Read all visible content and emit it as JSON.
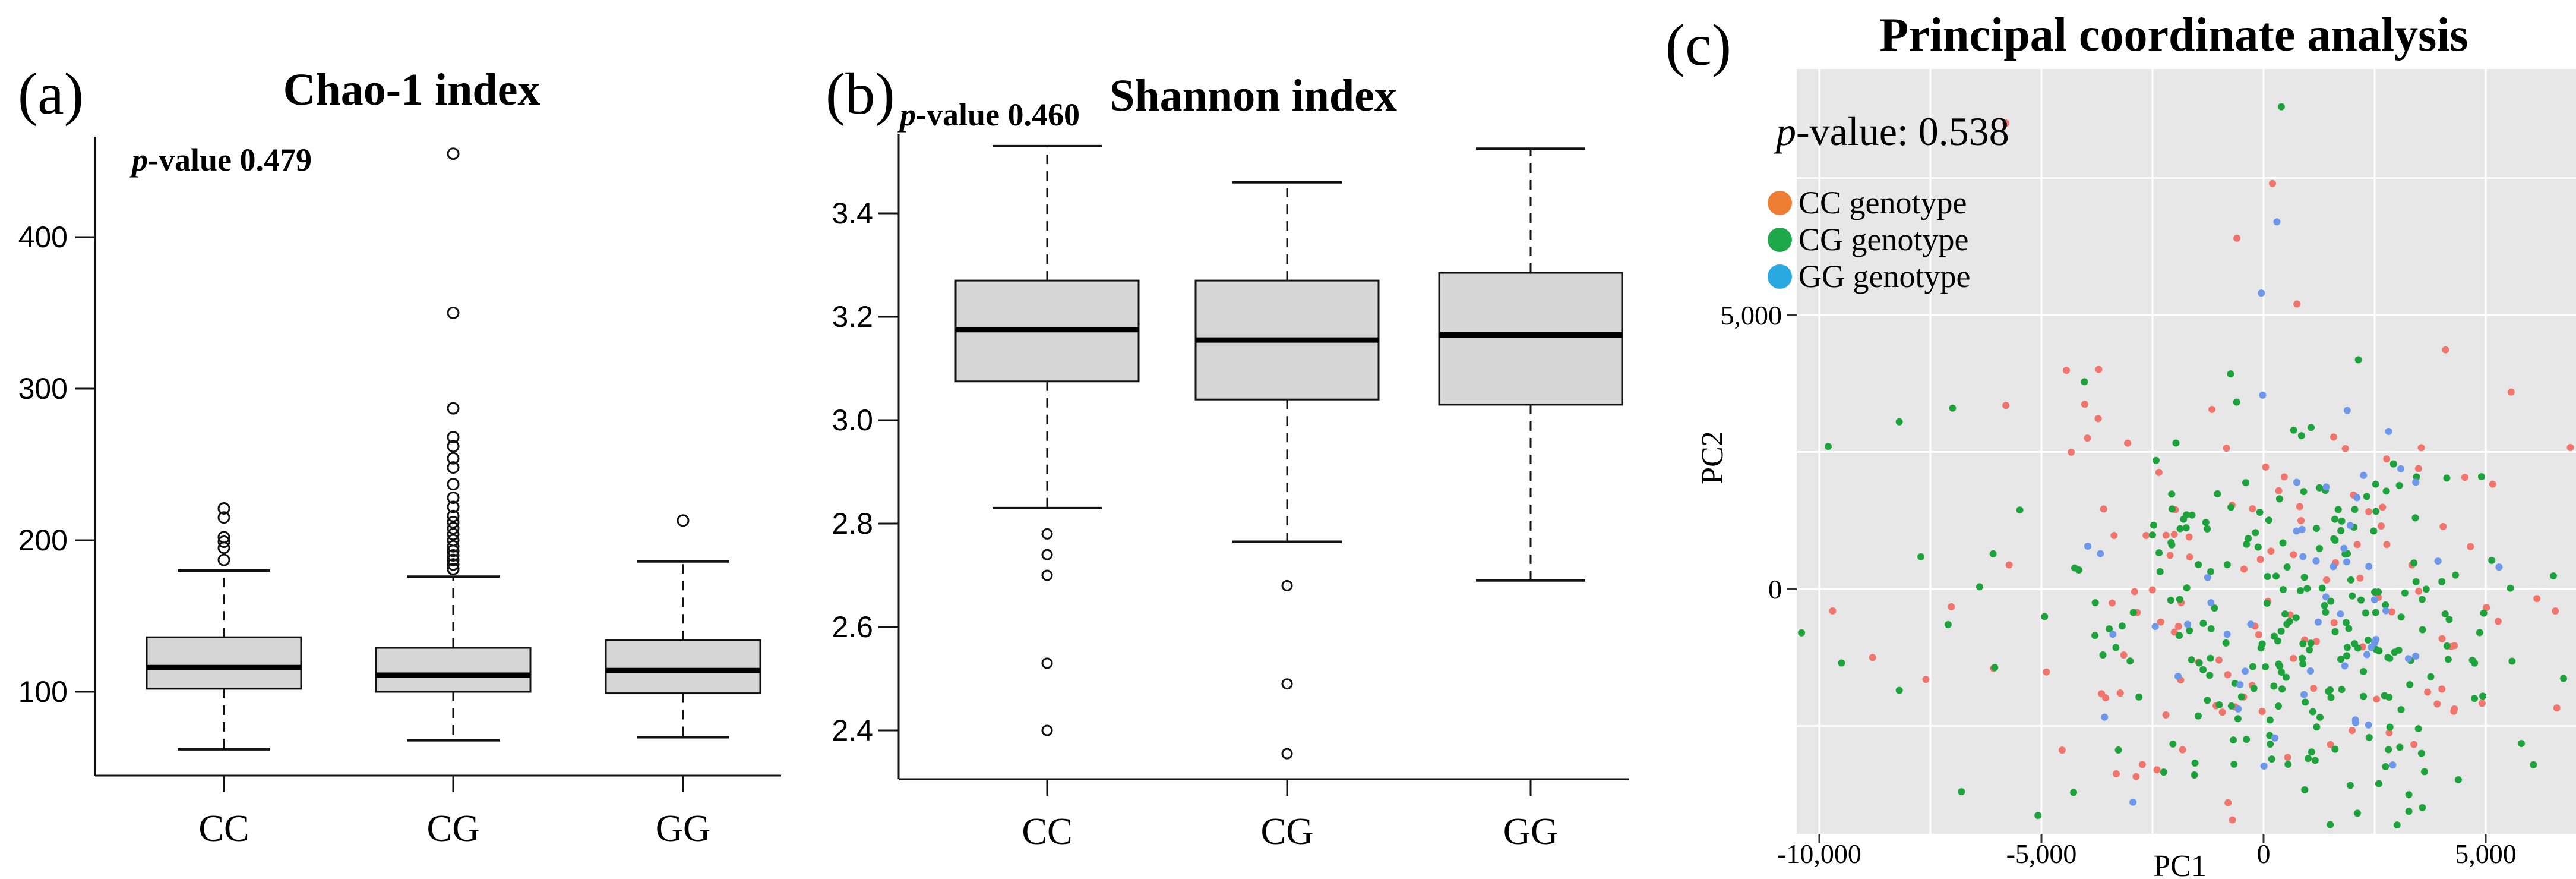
{
  "chart_data": [
    {
      "id": "chao1",
      "type": "box",
      "panel_label": "(a)",
      "title": "Chao-1 index",
      "p_value": 0.479,
      "p_italic": "p",
      "p_rest": "-value 0.479",
      "ylim": [
        48,
        480
      ],
      "yticks": [
        400,
        300,
        200,
        100
      ],
      "ytick_labels": [
        "400",
        "300",
        "200",
        "100"
      ],
      "grid": false,
      "categories": [
        "CC",
        "CG",
        "GG"
      ],
      "series": [
        {
          "category": "CC",
          "low": 62,
          "q1": 102,
          "median": 116,
          "q3": 136,
          "high": 180,
          "outliers": [
            187,
            195,
            199,
            202,
            215,
            221
          ]
        },
        {
          "category": "CG",
          "low": 68,
          "q1": 100,
          "median": 111,
          "q3": 129,
          "high": 176,
          "outliers": [
            181,
            184,
            187,
            190,
            193,
            196,
            200,
            204,
            208,
            212,
            216,
            222,
            228,
            237,
            248,
            254,
            262,
            268,
            287,
            350,
            455
          ]
        },
        {
          "category": "GG",
          "low": 70,
          "q1": 99,
          "median": 114,
          "q3": 134,
          "high": 186,
          "outliers": [
            213
          ]
        }
      ],
      "box_fill": "#d6d6d6",
      "line_color": "#111111"
    },
    {
      "id": "shannon",
      "type": "box",
      "panel_label": "(b)",
      "title": "Shannon index",
      "p_value": 0.46,
      "p_italic": "p",
      "p_rest": "-value 0.460",
      "ylim": [
        2.33,
        3.56
      ],
      "yticks": [
        3.4,
        3.2,
        3.0,
        2.8,
        2.6,
        2.4
      ],
      "ytick_labels": [
        "3.4",
        "3.2",
        "3.0",
        "2.8",
        "2.6",
        "2.4"
      ],
      "grid": false,
      "categories": [
        "CC",
        "CG",
        "GG"
      ],
      "series": [
        {
          "category": "CC",
          "low": 2.83,
          "q1": 3.075,
          "median": 3.175,
          "q3": 3.27,
          "high": 3.53,
          "outliers": [
            2.78,
            2.74,
            2.7,
            2.53,
            2.4
          ]
        },
        {
          "category": "CG",
          "low": 2.765,
          "q1": 3.04,
          "median": 3.155,
          "q3": 3.27,
          "high": 3.46,
          "outliers": [
            2.68,
            2.49,
            2.355
          ]
        },
        {
          "category": "GG",
          "low": 2.69,
          "q1": 3.03,
          "median": 3.165,
          "q3": 3.285,
          "high": 3.525,
          "outliers": []
        }
      ],
      "box_fill": "#d6d6d6",
      "line_color": "#111111"
    },
    {
      "id": "pcoa",
      "type": "scatter",
      "panel_label": "(c)",
      "title": "Principal coordinate analysis",
      "p_value": 0.538,
      "p_italic": "p",
      "p_rest": "-value: 0.538",
      "xlabel": "PC1",
      "ylabel": "PC2",
      "xlim": [
        -11500,
        7000
      ],
      "ylim": [
        -4450,
        9450
      ],
      "xticks": [
        -10000,
        -5000,
        0,
        5000
      ],
      "xtick_labels": [
        "-10,000",
        "-5,000",
        "0",
        "5,000"
      ],
      "yticks": [
        5000,
        0
      ],
      "ytick_labels": [
        "5,000",
        "0"
      ],
      "grid_interval": 2500,
      "grid": true,
      "panel_background": "#e7e7e7",
      "grid_color": "#ffffff",
      "legend": [
        {
          "label": "CC genotype",
          "color": "#ec7d33"
        },
        {
          "label": "CG genotype",
          "color": "#1fa84a"
        },
        {
          "label": "GG genotype",
          "color": "#2aa9e0"
        }
      ],
      "groups": [
        {
          "name": "CC",
          "point_color": "#f0766d",
          "n": 118,
          "x_mean": 300,
          "x_sd": 3100,
          "y_mean": -300,
          "y_sd": 1900,
          "seed": 11
        },
        {
          "name": "CG",
          "point_color": "#1da23c",
          "n": 238,
          "x_mean": 700,
          "x_sd": 2700,
          "y_mean": -600,
          "y_sd": 1700,
          "seed": 22
        },
        {
          "name": "GG",
          "point_color": "#6d97e9",
          "n": 54,
          "x_mean": 900,
          "x_sd": 2200,
          "y_mean": -400,
          "y_sd": 1500,
          "seed": 33
        }
      ],
      "notable_points": [
        {
          "group": "CC",
          "x": -5800,
          "y": 8500
        },
        {
          "group": "CG",
          "x": 400,
          "y": 8800
        },
        {
          "group": "CC",
          "x": 200,
          "y": 7400
        },
        {
          "group": "GG",
          "x": 300,
          "y": 6700
        },
        {
          "group": "CC",
          "x": -600,
          "y": 6400
        },
        {
          "group": "GG",
          "x": -50,
          "y": 5400
        },
        {
          "group": "CC",
          "x": 750,
          "y": 5200
        },
        {
          "group": "CG",
          "x": -7000,
          "y": 3300
        },
        {
          "group": "CG",
          "x": -8200,
          "y": 3050
        },
        {
          "group": "CG",
          "x": -9800,
          "y": 2600
        },
        {
          "group": "CC",
          "x": -5800,
          "y": 3350
        },
        {
          "group": "CC",
          "x": -9700,
          "y": -400
        },
        {
          "group": "CG",
          "x": -10400,
          "y": -800
        },
        {
          "group": "CG",
          "x": -11200,
          "y": -900
        },
        {
          "group": "CG",
          "x": -9500,
          "y": -1350
        },
        {
          "group": "CC",
          "x": -8800,
          "y": -1250
        },
        {
          "group": "CC",
          "x": -7600,
          "y": -1650
        },
        {
          "group": "CG",
          "x": -8200,
          "y": -1850
        },
        {
          "group": "CG",
          "x": -7100,
          "y": -650
        },
        {
          "group": "GG",
          "x": 5300,
          "y": 400
        },
        {
          "group": "CG",
          "x": 4700,
          "y": -1300
        },
        {
          "group": "CG",
          "x": -6800,
          "y": -3700
        },
        {
          "group": "CC",
          "x": -2400,
          "y": -3300
        },
        {
          "group": "CG",
          "x": 1500,
          "y": -4300
        },
        {
          "group": "CC",
          "x": -800,
          "y": -3900
        }
      ]
    }
  ]
}
